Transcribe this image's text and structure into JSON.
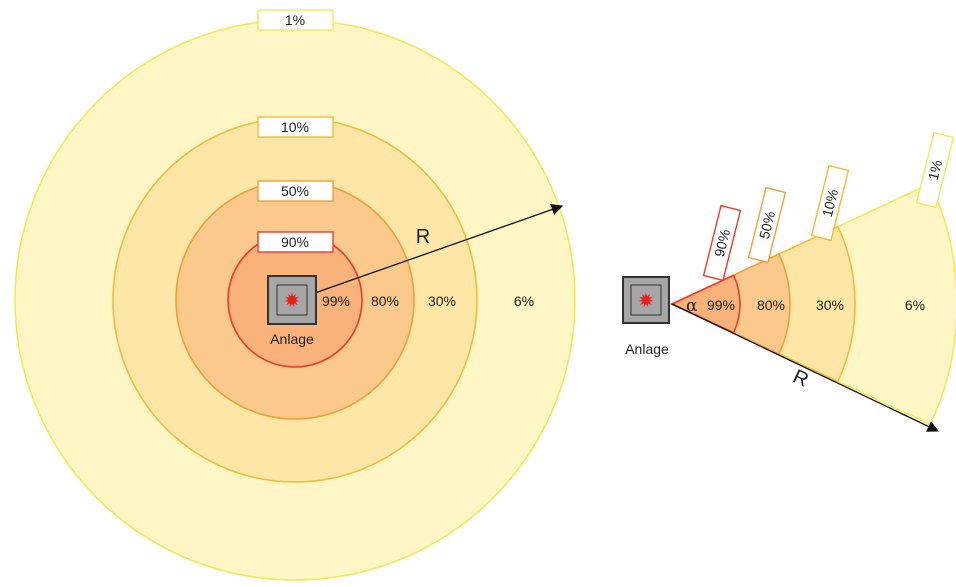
{
  "zones": [
    {
      "band": "99%",
      "boundary": "90%",
      "fill": "#f8b27a",
      "stroke": "#ee3a2c"
    },
    {
      "band": "80%",
      "boundary": "50%",
      "fill": "#fbc98b",
      "stroke": "#f0a03a"
    },
    {
      "band": "30%",
      "boundary": "10%",
      "fill": "#fde6a6",
      "stroke": "#f3bc3a"
    },
    {
      "band": "6%",
      "boundary": "1%",
      "fill": "#fef6c5",
      "stroke": "#f6e85a"
    }
  ],
  "plant_label": "Anlage",
  "radius_label": "R",
  "angle_label": "α",
  "colors": {
    "plant_body": "#a6a6a6",
    "plant_border": "#333333",
    "explosion": "#e8201c",
    "arrow": "#111111"
  }
}
